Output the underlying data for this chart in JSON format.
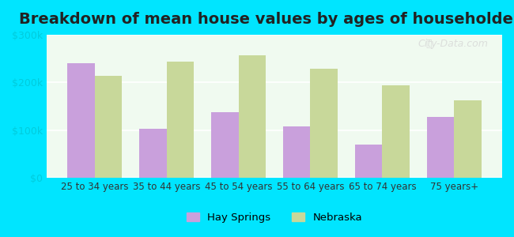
{
  "title": "Breakdown of mean house values by ages of householders",
  "categories": [
    "25 to 34 years",
    "35 to 44 years",
    "45 to 54 years",
    "55 to 64 years",
    "65 to 74 years",
    "75 years+"
  ],
  "hay_springs": [
    240000,
    103000,
    138000,
    108000,
    70000,
    128000
  ],
  "nebraska": [
    213000,
    243000,
    257000,
    228000,
    193000,
    162000
  ],
  "hay_springs_color": "#c9a0dc",
  "nebraska_color": "#c8d89a",
  "background_color": "#00e5ff",
  "plot_bg_start": "#f0faf0",
  "plot_bg_end": "#ffffff",
  "ylim": [
    0,
    300000
  ],
  "yticks": [
    0,
    100000,
    200000,
    300000
  ],
  "ytick_labels": [
    "$0",
    "$100k",
    "$200k",
    "$300k"
  ],
  "legend_hay_springs": "Hay Springs",
  "legend_nebraska": "Nebraska",
  "title_fontsize": 14,
  "bar_width": 0.38,
  "watermark": "City-Data.com"
}
